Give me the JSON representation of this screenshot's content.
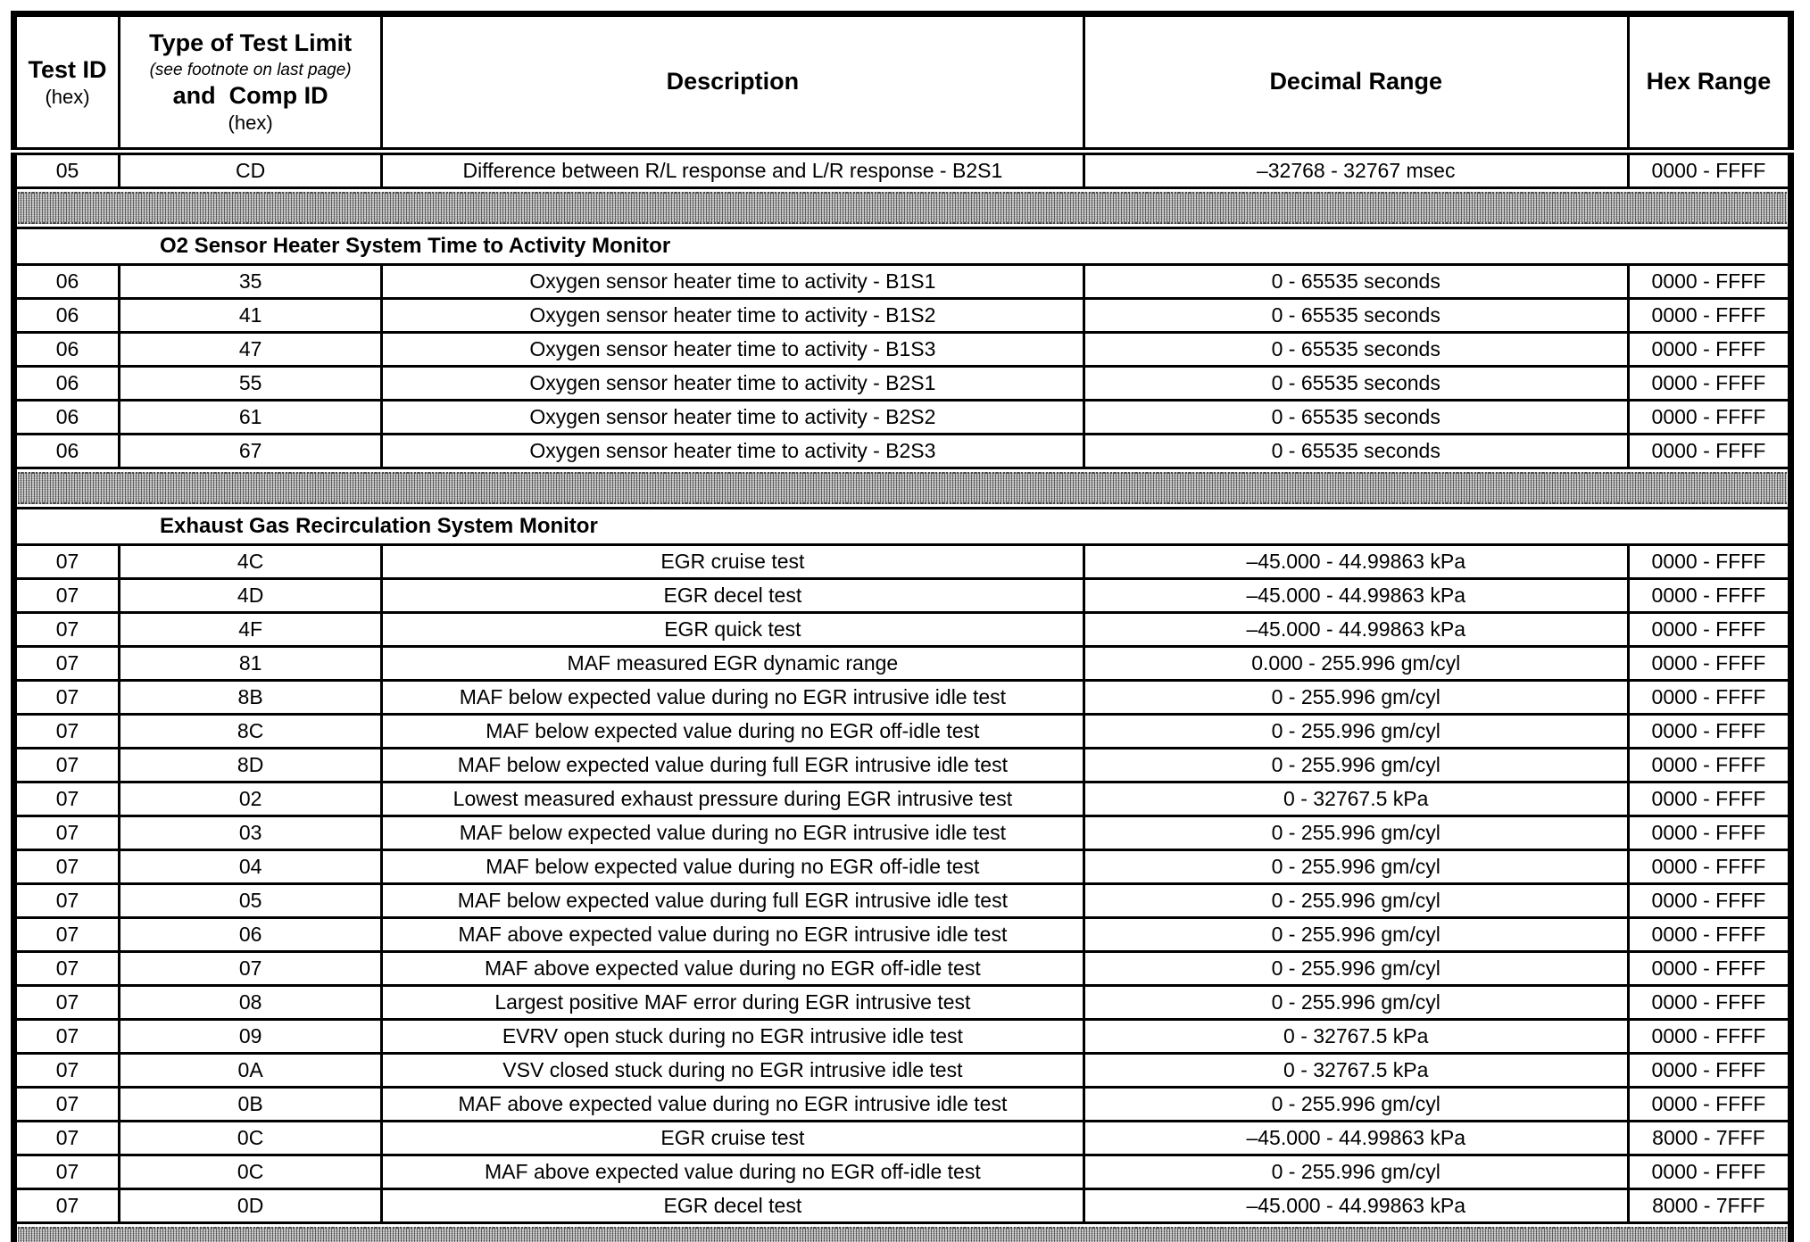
{
  "colors": {
    "text": "#000000",
    "background": "#ffffff",
    "hatch_gray": "#d6d6d6"
  },
  "header": {
    "test_id_label": "Test ID",
    "test_id_sub": "(hex)",
    "type_label": "Type of Test Limit",
    "type_footnote": "(see footnote on last page)",
    "type_label2": "and  Comp ID",
    "type_sub": "(hex)",
    "description_label": "Description",
    "decimal_label": "Decimal Range",
    "hex_label": "Hex Range"
  },
  "table": {
    "rows": [
      {
        "type": "data",
        "test_id": "05",
        "comp_id": "CD",
        "description": "Difference between R/L response and L/R response - B2S1",
        "decimal_range": "–32768  -  32767 msec",
        "hex_range": "0000  -  FFFF"
      },
      {
        "type": "separator"
      },
      {
        "type": "section",
        "title": "O2 Sensor Heater System Time to Activity Monitor"
      },
      {
        "type": "data",
        "test_id": "06",
        "comp_id": "35",
        "description": "Oxygen sensor heater time to activity - B1S1",
        "decimal_range": "0  -  65535 seconds",
        "hex_range": "0000  -  FFFF"
      },
      {
        "type": "data",
        "test_id": "06",
        "comp_id": "41",
        "description": "Oxygen sensor heater time to activity - B1S2",
        "decimal_range": "0  -  65535 seconds",
        "hex_range": "0000  -  FFFF"
      },
      {
        "type": "data",
        "test_id": "06",
        "comp_id": "47",
        "description": "Oxygen sensor heater time to activity - B1S3",
        "decimal_range": "0  -  65535 seconds",
        "hex_range": "0000  -  FFFF"
      },
      {
        "type": "data",
        "test_id": "06",
        "comp_id": "55",
        "description": "Oxygen sensor heater time to activity - B2S1",
        "decimal_range": "0  -  65535 seconds",
        "hex_range": "0000  -  FFFF"
      },
      {
        "type": "data",
        "test_id": "06",
        "comp_id": "61",
        "description": "Oxygen sensor heater time to activity - B2S2",
        "decimal_range": "0  -  65535 seconds",
        "hex_range": "0000  -  FFFF"
      },
      {
        "type": "data",
        "test_id": "06",
        "comp_id": "67",
        "description": "Oxygen sensor heater time to activity - B2S3",
        "decimal_range": "0  -  65535 seconds",
        "hex_range": "0000  -  FFFF"
      },
      {
        "type": "separator"
      },
      {
        "type": "section",
        "title": "Exhaust Gas Recirculation System Monitor"
      },
      {
        "type": "data",
        "test_id": "07",
        "comp_id": "4C",
        "description": "EGR cruise test",
        "decimal_range": "–45.000  -  44.99863 kPa",
        "hex_range": "0000  -  FFFF"
      },
      {
        "type": "data",
        "test_id": "07",
        "comp_id": "4D",
        "description": "EGR decel test",
        "decimal_range": "–45.000  -  44.99863 kPa",
        "hex_range": "0000  -  FFFF"
      },
      {
        "type": "data",
        "test_id": "07",
        "comp_id": "4F",
        "description": "EGR quick test",
        "decimal_range": "–45.000  -  44.99863 kPa",
        "hex_range": "0000  -  FFFF"
      },
      {
        "type": "data",
        "test_id": "07",
        "comp_id": "81",
        "description": "MAF measured EGR dynamic range",
        "decimal_range": "0.000  -  255.996 gm/cyl",
        "hex_range": "0000  -  FFFF"
      },
      {
        "type": "data",
        "test_id": "07",
        "comp_id": "8B",
        "description": "MAF below expected value during no EGR intrusive idle test",
        "decimal_range": "0  -  255.996 gm/cyl",
        "hex_range": "0000  -  FFFF"
      },
      {
        "type": "data",
        "test_id": "07",
        "comp_id": "8C",
        "description": "MAF below expected value during no EGR off-idle test",
        "decimal_range": "0  -  255.996 gm/cyl",
        "hex_range": "0000  -  FFFF"
      },
      {
        "type": "data",
        "test_id": "07",
        "comp_id": "8D",
        "description": "MAF below expected value during full EGR intrusive idle test",
        "decimal_range": "0  -  255.996 gm/cyl",
        "hex_range": "0000  -  FFFF"
      },
      {
        "type": "data",
        "test_id": "07",
        "comp_id": "02",
        "description": "Lowest measured exhaust pressure during EGR intrusive test",
        "decimal_range": "0  -  32767.5 kPa",
        "hex_range": "0000  -  FFFF"
      },
      {
        "type": "data",
        "test_id": "07",
        "comp_id": "03",
        "description": "MAF below expected value during no EGR intrusive idle test",
        "decimal_range": "0  -  255.996 gm/cyl",
        "hex_range": "0000  -  FFFF"
      },
      {
        "type": "data",
        "test_id": "07",
        "comp_id": "04",
        "description": "MAF below expected value during no EGR off-idle test",
        "decimal_range": "0  -  255.996 gm/cyl",
        "hex_range": "0000  -  FFFF"
      },
      {
        "type": "data",
        "test_id": "07",
        "comp_id": "05",
        "description": "MAF below expected value during full EGR intrusive idle test",
        "decimal_range": "0  -  255.996 gm/cyl",
        "hex_range": "0000  -  FFFF"
      },
      {
        "type": "data",
        "test_id": "07",
        "comp_id": "06",
        "description": "MAF above expected value during no EGR intrusive idle test",
        "decimal_range": "0  -  255.996 gm/cyl",
        "hex_range": "0000  -  FFFF"
      },
      {
        "type": "data",
        "test_id": "07",
        "comp_id": "07",
        "description": "MAF above expected value during no EGR off-idle test",
        "decimal_range": "0  -  255.996 gm/cyl",
        "hex_range": "0000  -  FFFF"
      },
      {
        "type": "data",
        "test_id": "07",
        "comp_id": "08",
        "description": "Largest positive MAF error during EGR intrusive test",
        "decimal_range": "0  -  255.996 gm/cyl",
        "hex_range": "0000  -  FFFF"
      },
      {
        "type": "data",
        "test_id": "07",
        "comp_id": "09",
        "description": "EVRV open stuck during no EGR intrusive idle test",
        "decimal_range": "0  -  32767.5 kPa",
        "hex_range": "0000  -  FFFF"
      },
      {
        "type": "data",
        "test_id": "07",
        "comp_id": "0A",
        "description": "VSV closed stuck during no EGR intrusive idle test",
        "decimal_range": "0  -  32767.5 kPa",
        "hex_range": "0000  -  FFFF"
      },
      {
        "type": "data",
        "test_id": "07",
        "comp_id": "0B",
        "description": "MAF above expected value during no EGR intrusive idle test",
        "decimal_range": "0  -  255.996 gm/cyl",
        "hex_range": "0000  -  FFFF"
      },
      {
        "type": "data",
        "test_id": "07",
        "comp_id": "0C",
        "description": "EGR cruise test",
        "decimal_range": "–45.000  -  44.99863 kPa",
        "hex_range": "8000  -  7FFF"
      },
      {
        "type": "data",
        "test_id": "07",
        "comp_id": "0C",
        "description": "MAF above expected value during no EGR off-idle test",
        "decimal_range": "0  -  255.996 gm/cyl",
        "hex_range": "0000  -  FFFF"
      },
      {
        "type": "data",
        "test_id": "07",
        "comp_id": "0D",
        "description": "EGR decel test",
        "decimal_range": "–45.000  -  44.99863 kPa",
        "hex_range": "8000  -  7FFF"
      },
      {
        "type": "separator"
      }
    ]
  }
}
